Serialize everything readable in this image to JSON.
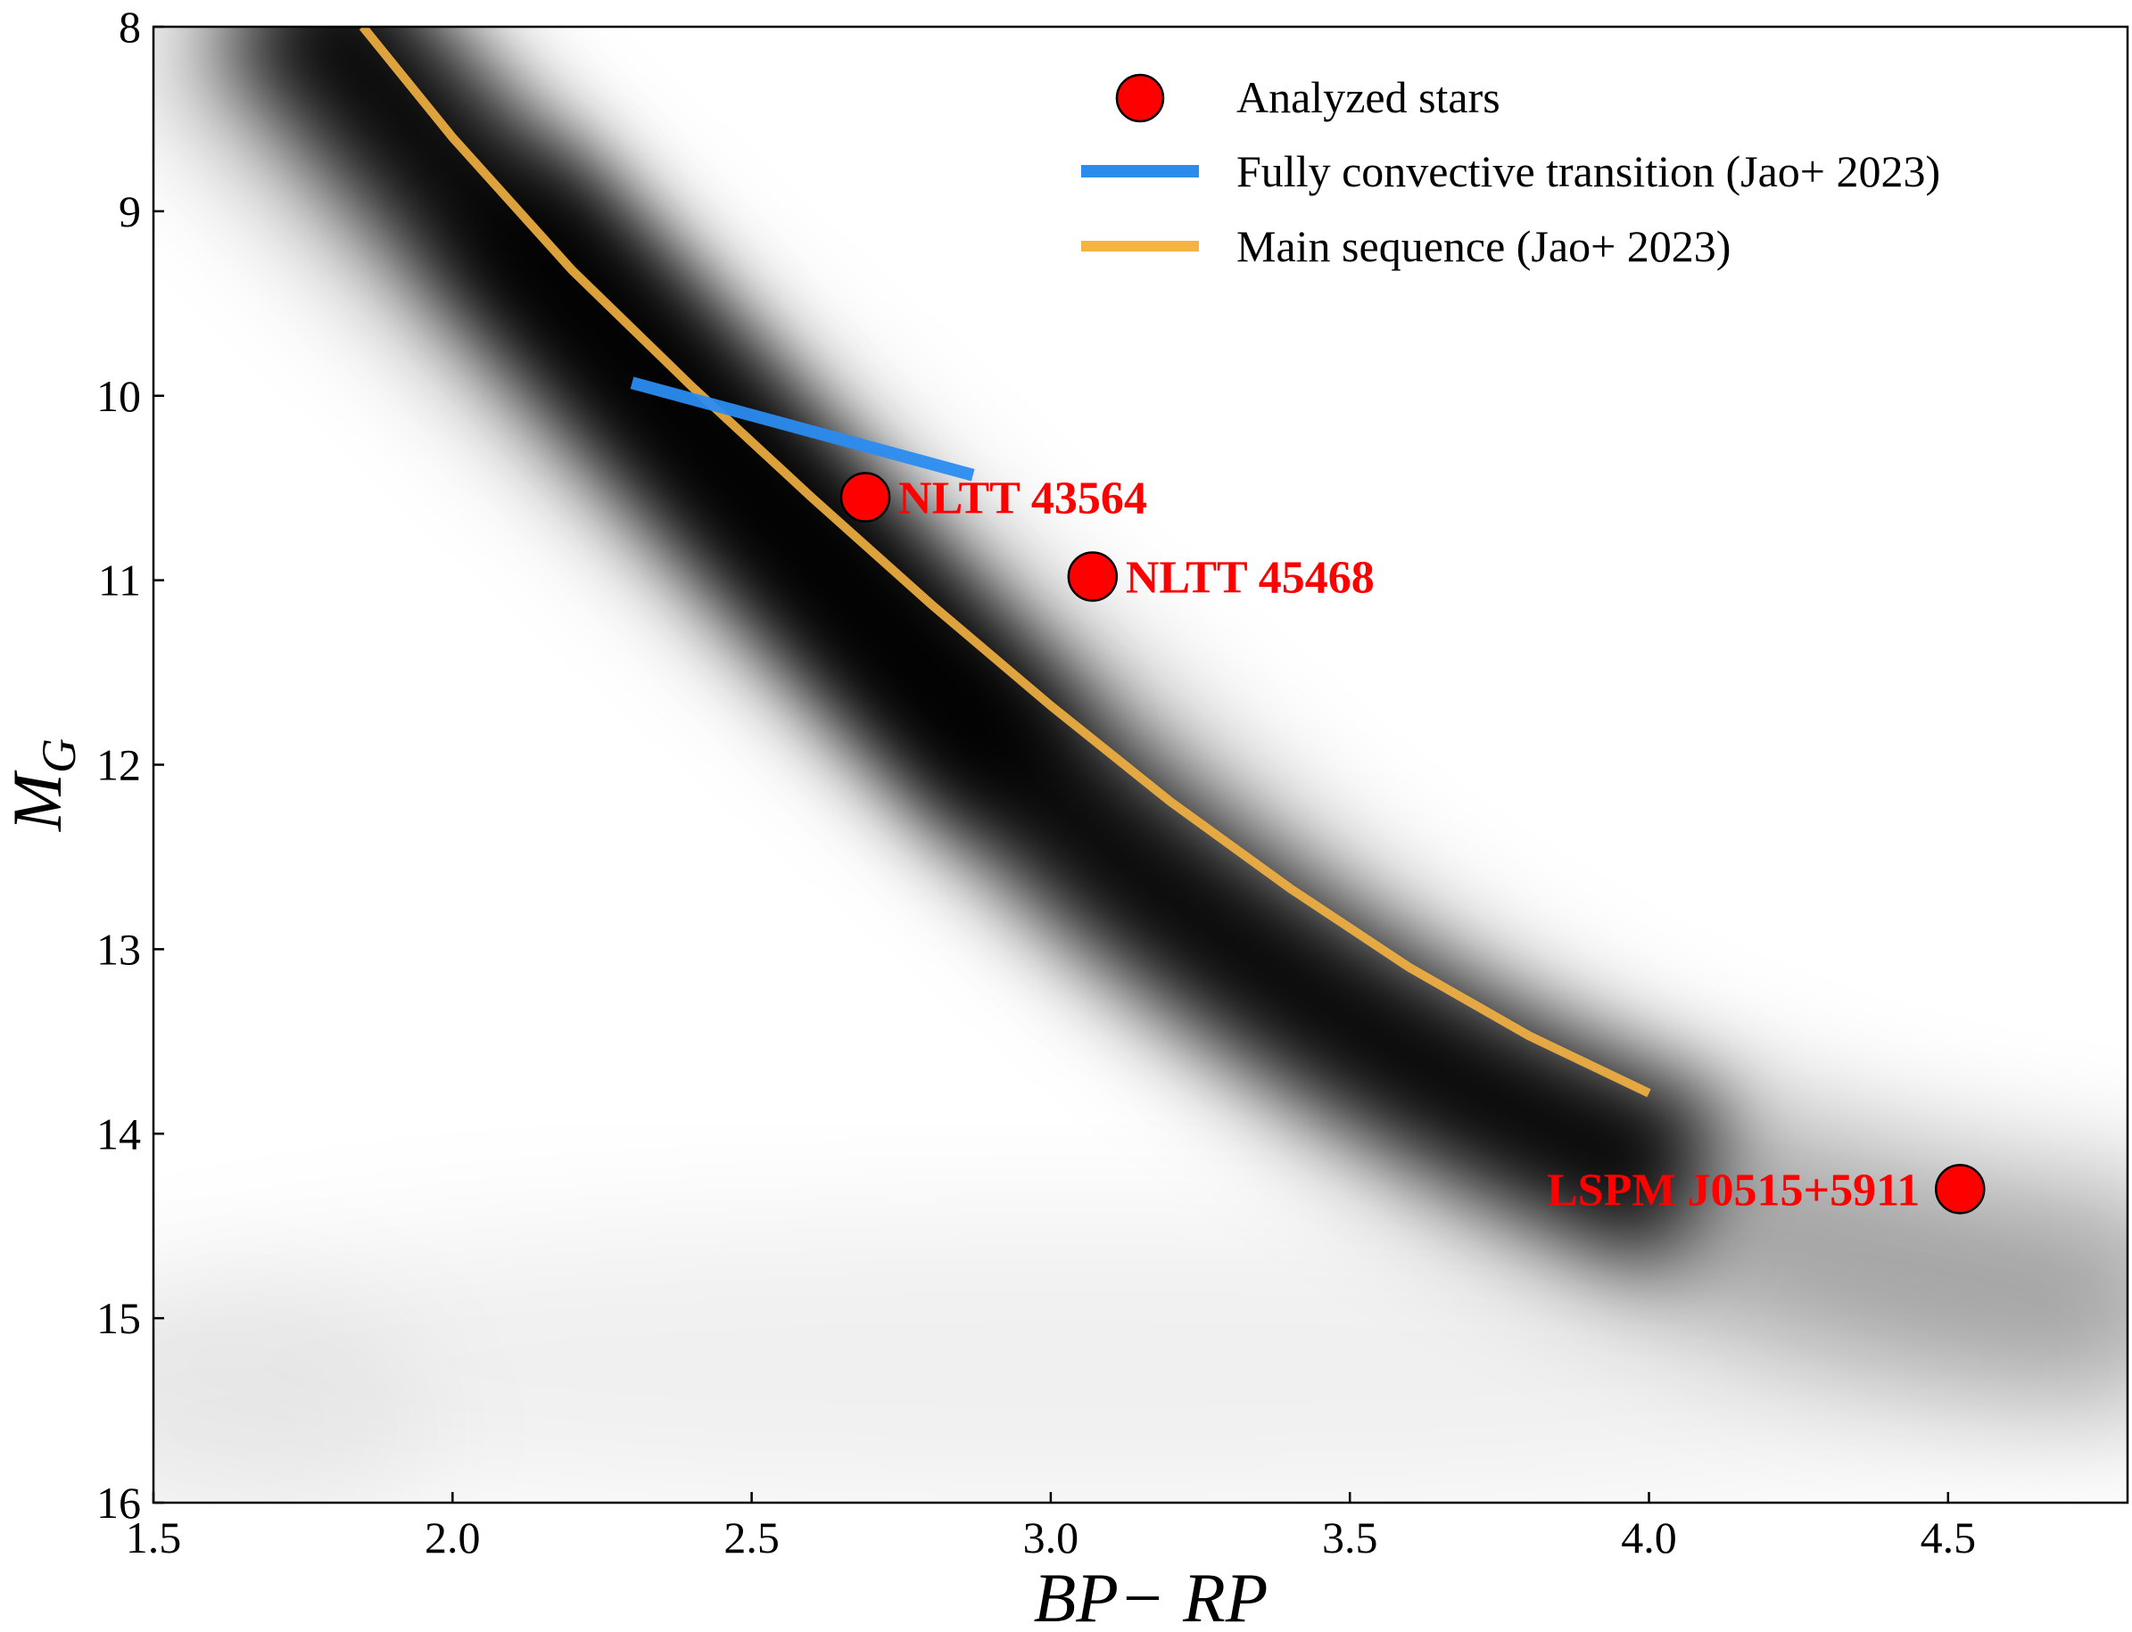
{
  "chart_data": {
    "type": "scatter",
    "title": "",
    "xlabel": "BP− RP",
    "ylabel_main": "M",
    "ylabel_sub": "G",
    "xlim": [
      1.5,
      4.8
    ],
    "ylim": [
      16,
      8
    ],
    "y_inverted": true,
    "x_ticks": [
      1.5,
      2.0,
      2.5,
      3.0,
      3.5,
      4.0,
      4.5
    ],
    "x_tick_labels": [
      "1.5",
      "2.0",
      "2.5",
      "3.0",
      "3.5",
      "4.0",
      "4.5"
    ],
    "y_ticks": [
      8,
      9,
      10,
      11,
      12,
      13,
      14,
      15,
      16
    ],
    "y_tick_labels": [
      "8",
      "9",
      "10",
      "11",
      "12",
      "13",
      "14",
      "15",
      "16"
    ],
    "grid": false,
    "legend": {
      "placement": "top-right",
      "entries": [
        {
          "label": "Analyzed stars",
          "kind": "marker",
          "color": "#ff0000"
        },
        {
          "label": "Fully convective transition (Jao+ 2023)",
          "kind": "line",
          "color": "#2b8cf0"
        },
        {
          "label": "Main sequence (Jao+ 2023)",
          "kind": "line",
          "color": "#f5b342"
        }
      ]
    },
    "series": [
      {
        "name": "Analyzed stars",
        "kind": "scatter",
        "color": "#ff0000",
        "points": [
          {
            "x": 2.69,
            "y": 10.55,
            "label": "NLTT 43564",
            "label_side": "right"
          },
          {
            "x": 3.07,
            "y": 10.98,
            "label": "NLTT 45468",
            "label_side": "right"
          },
          {
            "x": 4.52,
            "y": 14.3,
            "label": "LSPM J0515+5911",
            "label_side": "left"
          }
        ]
      },
      {
        "name": "Fully convective transition (Jao+ 2023)",
        "kind": "line",
        "color": "#2b8cf0",
        "x": [
          2.3,
          2.87
        ],
        "y": [
          9.93,
          10.43
        ]
      },
      {
        "name": "Main sequence (Jao+ 2023)",
        "kind": "line",
        "color": "#f5b342",
        "x": [
          1.85,
          2.0,
          2.2,
          2.4,
          2.6,
          2.8,
          3.0,
          3.2,
          3.4,
          3.6,
          3.8,
          4.0
        ],
        "y": [
          8.0,
          8.6,
          9.32,
          9.95,
          10.55,
          11.13,
          11.68,
          12.2,
          12.67,
          13.1,
          13.47,
          13.78
        ]
      }
    ],
    "background": "density map of nearby stars (grayscale)"
  }
}
